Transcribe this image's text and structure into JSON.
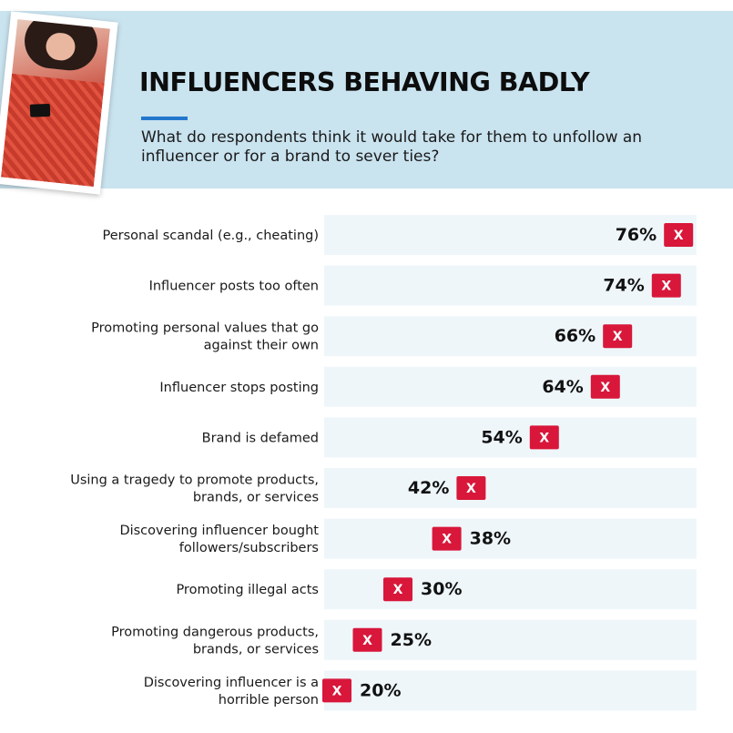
{
  "header": {
    "title": "INFLUENCERS BEHAVING BADLY",
    "subtitle": "What do respondents think it would take for them to unfollow an influencer or for a brand to sever ties?"
  },
  "colors": {
    "header_bg": "#c9e3ef",
    "row_bg": "#eef6fa",
    "marker": "#d8173a",
    "accent_rule": "#2277cc"
  },
  "marker_icon": "x-mark-icon",
  "marker_letter": "X",
  "chart_data": {
    "type": "scatter",
    "categories": [
      "Personal scandal (e.g., cheating)",
      "Influencer posts too often",
      "Promoting personal values that go against their own",
      "Influencer stops posting",
      "Brand is defamed",
      "Using a tragedy to promote products, brands, or services",
      "Discovering influencer bought followers/subscribers",
      "Promoting illegal acts",
      "Promoting dangerous products, brands, or services",
      "Discovering influencer is a horrible person"
    ],
    "label_lines": [
      [
        "Personal scandal (e.g., cheating)"
      ],
      [
        "Influencer posts too often"
      ],
      [
        "Promoting personal values that go",
        "against their own"
      ],
      [
        "Influencer stops posting"
      ],
      [
        "Brand is defamed"
      ],
      [
        "Using a tragedy to promote products,",
        "brands, or services"
      ],
      [
        "Discovering influencer bought",
        "followers/subscribers"
      ],
      [
        "Promoting illegal acts"
      ],
      [
        "Promoting dangerous products,",
        "brands, or services"
      ],
      [
        "Discovering influencer is a",
        "horrible person"
      ]
    ],
    "values": [
      76,
      74,
      66,
      64,
      54,
      42,
      38,
      30,
      25,
      20
    ],
    "value_labels": [
      "76%",
      "74%",
      "66%",
      "64%",
      "54%",
      "42%",
      "38%",
      "30%",
      "25%",
      "20%"
    ],
    "unit": "%",
    "xlim": [
      0,
      80
    ],
    "grid": false,
    "legend": "none"
  }
}
